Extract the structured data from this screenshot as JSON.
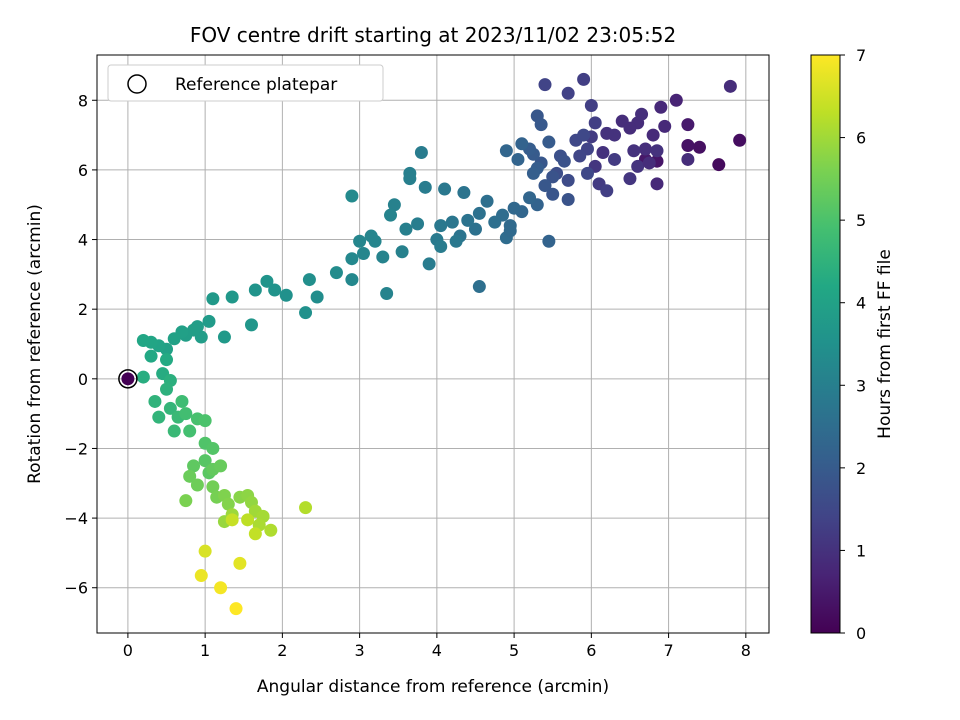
{
  "chart_data": {
    "type": "scatter",
    "title": "FOV centre drift starting at 2023/11/02 23:05:52",
    "xlabel": "Angular distance from reference (arcmin)",
    "ylabel": "Rotation from reference (arcmin)",
    "xlim": [
      -0.4,
      8.3
    ],
    "ylim": [
      -7.3,
      9.3
    ],
    "x_ticks": [
      0,
      1,
      2,
      3,
      4,
      5,
      6,
      7,
      8
    ],
    "y_ticks": [
      -6,
      -4,
      -2,
      0,
      2,
      4,
      6,
      8
    ],
    "x_tick_labels": [
      "0",
      "1",
      "2",
      "3",
      "4",
      "5",
      "6",
      "7",
      "8"
    ],
    "y_tick_labels": [
      "−6",
      "−4",
      "−2",
      "0",
      "2",
      "4",
      "6",
      "8"
    ],
    "grid": true,
    "colormap": "viridis",
    "colorbar": {
      "label": "Hours from first FF file",
      "range": [
        0,
        7
      ],
      "ticks": [
        0,
        1,
        2,
        3,
        4,
        5,
        6,
        7
      ],
      "tick_labels": [
        "0",
        "1",
        "2",
        "3",
        "4",
        "5",
        "6",
        "7"
      ]
    },
    "legend": {
      "position": "top-left",
      "entries": [
        "Reference platepar"
      ]
    },
    "reference_point": {
      "x": 0,
      "y": 0,
      "label": "Reference platepar"
    },
    "series": [
      {
        "points": [
          [
            0,
            0,
            0
          ],
          [
            7.65,
            6.15,
            0.2
          ],
          [
            7.92,
            6.85,
            0.25
          ],
          [
            7.4,
            6.65,
            0.3
          ],
          [
            7.25,
            6.7,
            0.35
          ],
          [
            6.85,
            6.25,
            0.4
          ],
          [
            6.7,
            6.3,
            0.45
          ],
          [
            7.25,
            7.3,
            0.5
          ],
          [
            7.1,
            8.0,
            0.7
          ],
          [
            6.9,
            7.8,
            0.8
          ],
          [
            7.8,
            8.4,
            0.9
          ],
          [
            6.85,
            5.6,
            0.8
          ],
          [
            6.95,
            7.25,
            0.8
          ],
          [
            6.6,
            7.35,
            0.9
          ],
          [
            6.8,
            7.0,
            0.85
          ],
          [
            6.4,
            7.4,
            0.9
          ],
          [
            6.3,
            7.0,
            1.0
          ],
          [
            6.7,
            6.6,
            0.95
          ],
          [
            6.55,
            6.55,
            1.0
          ],
          [
            6.5,
            5.75,
            1.1
          ],
          [
            6.2,
            7.05,
            1.0
          ],
          [
            6.15,
            6.5,
            1.0
          ],
          [
            6.05,
            6.1,
            1.1
          ],
          [
            6.6,
            6.1,
            1.05
          ],
          [
            6.85,
            6.55,
            1.0
          ],
          [
            6.75,
            6.2,
            0.9
          ],
          [
            7.25,
            6.3,
            0.9
          ],
          [
            6.65,
            7.6,
            0.95
          ],
          [
            6.5,
            7.2,
            0.9
          ],
          [
            6.0,
            6.95,
            1.2
          ],
          [
            6.3,
            6.3,
            1.2
          ],
          [
            6.1,
            5.6,
            1.2
          ],
          [
            6.2,
            5.4,
            1.3
          ],
          [
            6.05,
            7.35,
            1.3
          ],
          [
            6.0,
            7.85,
            1.3
          ],
          [
            5.9,
            8.6,
            1.3
          ],
          [
            5.7,
            8.2,
            1.35
          ],
          [
            5.4,
            8.45,
            1.4
          ],
          [
            5.95,
            6.6,
            1.4
          ],
          [
            5.85,
            6.4,
            1.45
          ],
          [
            5.8,
            6.85,
            1.5
          ],
          [
            5.95,
            5.9,
            1.5
          ],
          [
            5.9,
            7.0,
            1.5
          ],
          [
            5.7,
            5.7,
            1.6
          ],
          [
            5.55,
            5.9,
            1.65
          ],
          [
            5.6,
            6.4,
            1.7
          ],
          [
            5.65,
            6.25,
            1.75
          ],
          [
            5.5,
            5.8,
            1.8
          ],
          [
            5.7,
            5.15,
            1.8
          ],
          [
            5.5,
            5.3,
            1.85
          ],
          [
            5.4,
            5.55,
            1.9
          ],
          [
            5.35,
            6.2,
            1.9
          ],
          [
            5.3,
            7.55,
            1.9
          ],
          [
            5.35,
            7.3,
            1.95
          ],
          [
            5.25,
            6.45,
            2.0
          ],
          [
            5.45,
            6.8,
            2.0
          ],
          [
            5.3,
            6.05,
            2.05
          ],
          [
            5.2,
            6.6,
            2.05
          ],
          [
            5.25,
            5.9,
            2.1
          ],
          [
            5.45,
            3.95,
            2.2
          ],
          [
            5.3,
            5.0,
            2.2
          ],
          [
            5.1,
            6.75,
            2.2
          ],
          [
            5.05,
            6.3,
            2.25
          ],
          [
            4.9,
            6.55,
            2.3
          ],
          [
            5.2,
            5.2,
            2.3
          ],
          [
            5.1,
            4.8,
            2.3
          ],
          [
            5.0,
            4.9,
            2.35
          ],
          [
            4.95,
            4.4,
            2.4
          ],
          [
            4.9,
            4.05,
            2.45
          ],
          [
            4.95,
            4.25,
            2.4
          ],
          [
            4.85,
            4.7,
            2.5
          ],
          [
            4.75,
            4.5,
            2.55
          ],
          [
            4.65,
            5.1,
            2.55
          ],
          [
            4.55,
            2.65,
            2.55
          ],
          [
            4.55,
            4.75,
            2.6
          ],
          [
            4.5,
            4.3,
            2.6
          ],
          [
            4.4,
            4.55,
            2.65
          ],
          [
            4.35,
            5.35,
            2.7
          ],
          [
            4.3,
            4.1,
            2.7
          ],
          [
            4.25,
            3.95,
            2.8
          ],
          [
            4.2,
            4.5,
            2.75
          ],
          [
            4.1,
            5.45,
            2.8
          ],
          [
            4.05,
            4.4,
            2.8
          ],
          [
            4.0,
            4.0,
            2.85
          ],
          [
            4.05,
            3.8,
            2.9
          ],
          [
            3.9,
            3.3,
            2.9
          ],
          [
            3.85,
            5.5,
            2.9
          ],
          [
            3.8,
            6.5,
            2.9
          ],
          [
            3.75,
            4.45,
            2.95
          ],
          [
            3.65,
            5.9,
            3.0
          ],
          [
            3.65,
            5.75,
            3.0
          ],
          [
            3.6,
            4.3,
            3.0
          ],
          [
            3.55,
            3.65,
            3.05
          ],
          [
            3.45,
            5.0,
            3.05
          ],
          [
            3.4,
            4.7,
            3.1
          ],
          [
            3.35,
            2.45,
            3.1
          ],
          [
            3.3,
            3.5,
            3.1
          ],
          [
            3.2,
            3.95,
            3.15
          ],
          [
            3.15,
            4.1,
            3.15
          ],
          [
            3.05,
            3.6,
            3.2
          ],
          [
            3.0,
            3.95,
            3.2
          ],
          [
            2.9,
            3.45,
            3.25
          ],
          [
            2.9,
            2.85,
            3.25
          ],
          [
            2.9,
            5.25,
            3.3
          ],
          [
            2.7,
            3.05,
            3.35
          ],
          [
            2.45,
            2.35,
            3.4
          ],
          [
            2.35,
            2.85,
            3.45
          ],
          [
            2.3,
            1.9,
            3.5
          ],
          [
            2.05,
            2.4,
            3.5
          ],
          [
            1.9,
            2.55,
            3.55
          ],
          [
            1.8,
            2.8,
            3.6
          ],
          [
            1.65,
            2.55,
            3.6
          ],
          [
            1.6,
            1.55,
            3.65
          ],
          [
            1.35,
            2.35,
            3.7
          ],
          [
            1.25,
            1.2,
            3.75
          ],
          [
            1.1,
            2.3,
            3.75
          ],
          [
            1.05,
            1.65,
            3.8
          ],
          [
            0.95,
            1.2,
            3.85
          ],
          [
            0.9,
            1.5,
            3.85
          ],
          [
            0.85,
            1.4,
            3.9
          ],
          [
            0.75,
            1.25,
            3.9
          ],
          [
            0.7,
            1.35,
            3.95
          ],
          [
            0.6,
            1.15,
            4.0
          ],
          [
            0.5,
            0.85,
            4.0
          ],
          [
            0.4,
            0.95,
            4.05
          ],
          [
            0.3,
            1.05,
            4.1
          ],
          [
            0.2,
            1.1,
            4.15
          ],
          [
            0.3,
            0.65,
            4.2
          ],
          [
            0.5,
            0.55,
            4.25
          ],
          [
            0.45,
            0.15,
            4.3
          ],
          [
            0.2,
            0.05,
            4.35
          ],
          [
            0.55,
            -0.05,
            4.4
          ],
          [
            0.5,
            -0.3,
            4.45
          ],
          [
            0.35,
            -0.65,
            4.5
          ],
          [
            0.4,
            -1.1,
            4.55
          ],
          [
            0.55,
            -0.85,
            4.6
          ],
          [
            0.65,
            -1.1,
            4.7
          ],
          [
            0.6,
            -1.5,
            4.7
          ],
          [
            0.7,
            -0.65,
            4.8
          ],
          [
            0.75,
            -1.0,
            4.85
          ],
          [
            0.8,
            -1.5,
            4.9
          ],
          [
            0.9,
            -1.15,
            4.95
          ],
          [
            1.0,
            -1.2,
            5.0
          ],
          [
            1.0,
            -1.85,
            5.05
          ],
          [
            1.1,
            -2.0,
            5.1
          ],
          [
            1.0,
            -2.35,
            5.15
          ],
          [
            1.05,
            -2.7,
            5.2
          ],
          [
            0.85,
            -2.5,
            5.25
          ],
          [
            1.1,
            -2.6,
            5.3
          ],
          [
            1.2,
            -2.5,
            5.35
          ],
          [
            0.8,
            -2.8,
            5.4
          ],
          [
            0.9,
            -3.05,
            5.45
          ],
          [
            1.1,
            -3.1,
            5.5
          ],
          [
            1.15,
            -3.4,
            5.55
          ],
          [
            0.75,
            -3.5,
            5.6
          ],
          [
            1.25,
            -3.35,
            5.65
          ],
          [
            1.3,
            -3.6,
            5.7
          ],
          [
            1.45,
            -3.4,
            5.75
          ],
          [
            1.55,
            -3.35,
            5.8
          ],
          [
            1.6,
            -3.55,
            5.85
          ],
          [
            1.25,
            -4.1,
            5.9
          ],
          [
            1.35,
            -3.9,
            5.95
          ],
          [
            1.65,
            -3.8,
            6.0
          ],
          [
            1.75,
            -3.95,
            6.05
          ],
          [
            1.7,
            -4.2,
            6.1
          ],
          [
            1.85,
            -4.35,
            6.15
          ],
          [
            2.3,
            -3.7,
            6.2
          ],
          [
            1.55,
            -4.05,
            6.3
          ],
          [
            1.65,
            -4.45,
            6.35
          ],
          [
            1.35,
            -4.05,
            6.4
          ],
          [
            1.0,
            -4.95,
            6.6
          ],
          [
            1.45,
            -5.3,
            6.7
          ],
          [
            0.95,
            -5.65,
            6.8
          ],
          [
            1.2,
            -6.0,
            6.9
          ],
          [
            1.4,
            -6.6,
            7.0
          ]
        ]
      }
    ]
  }
}
